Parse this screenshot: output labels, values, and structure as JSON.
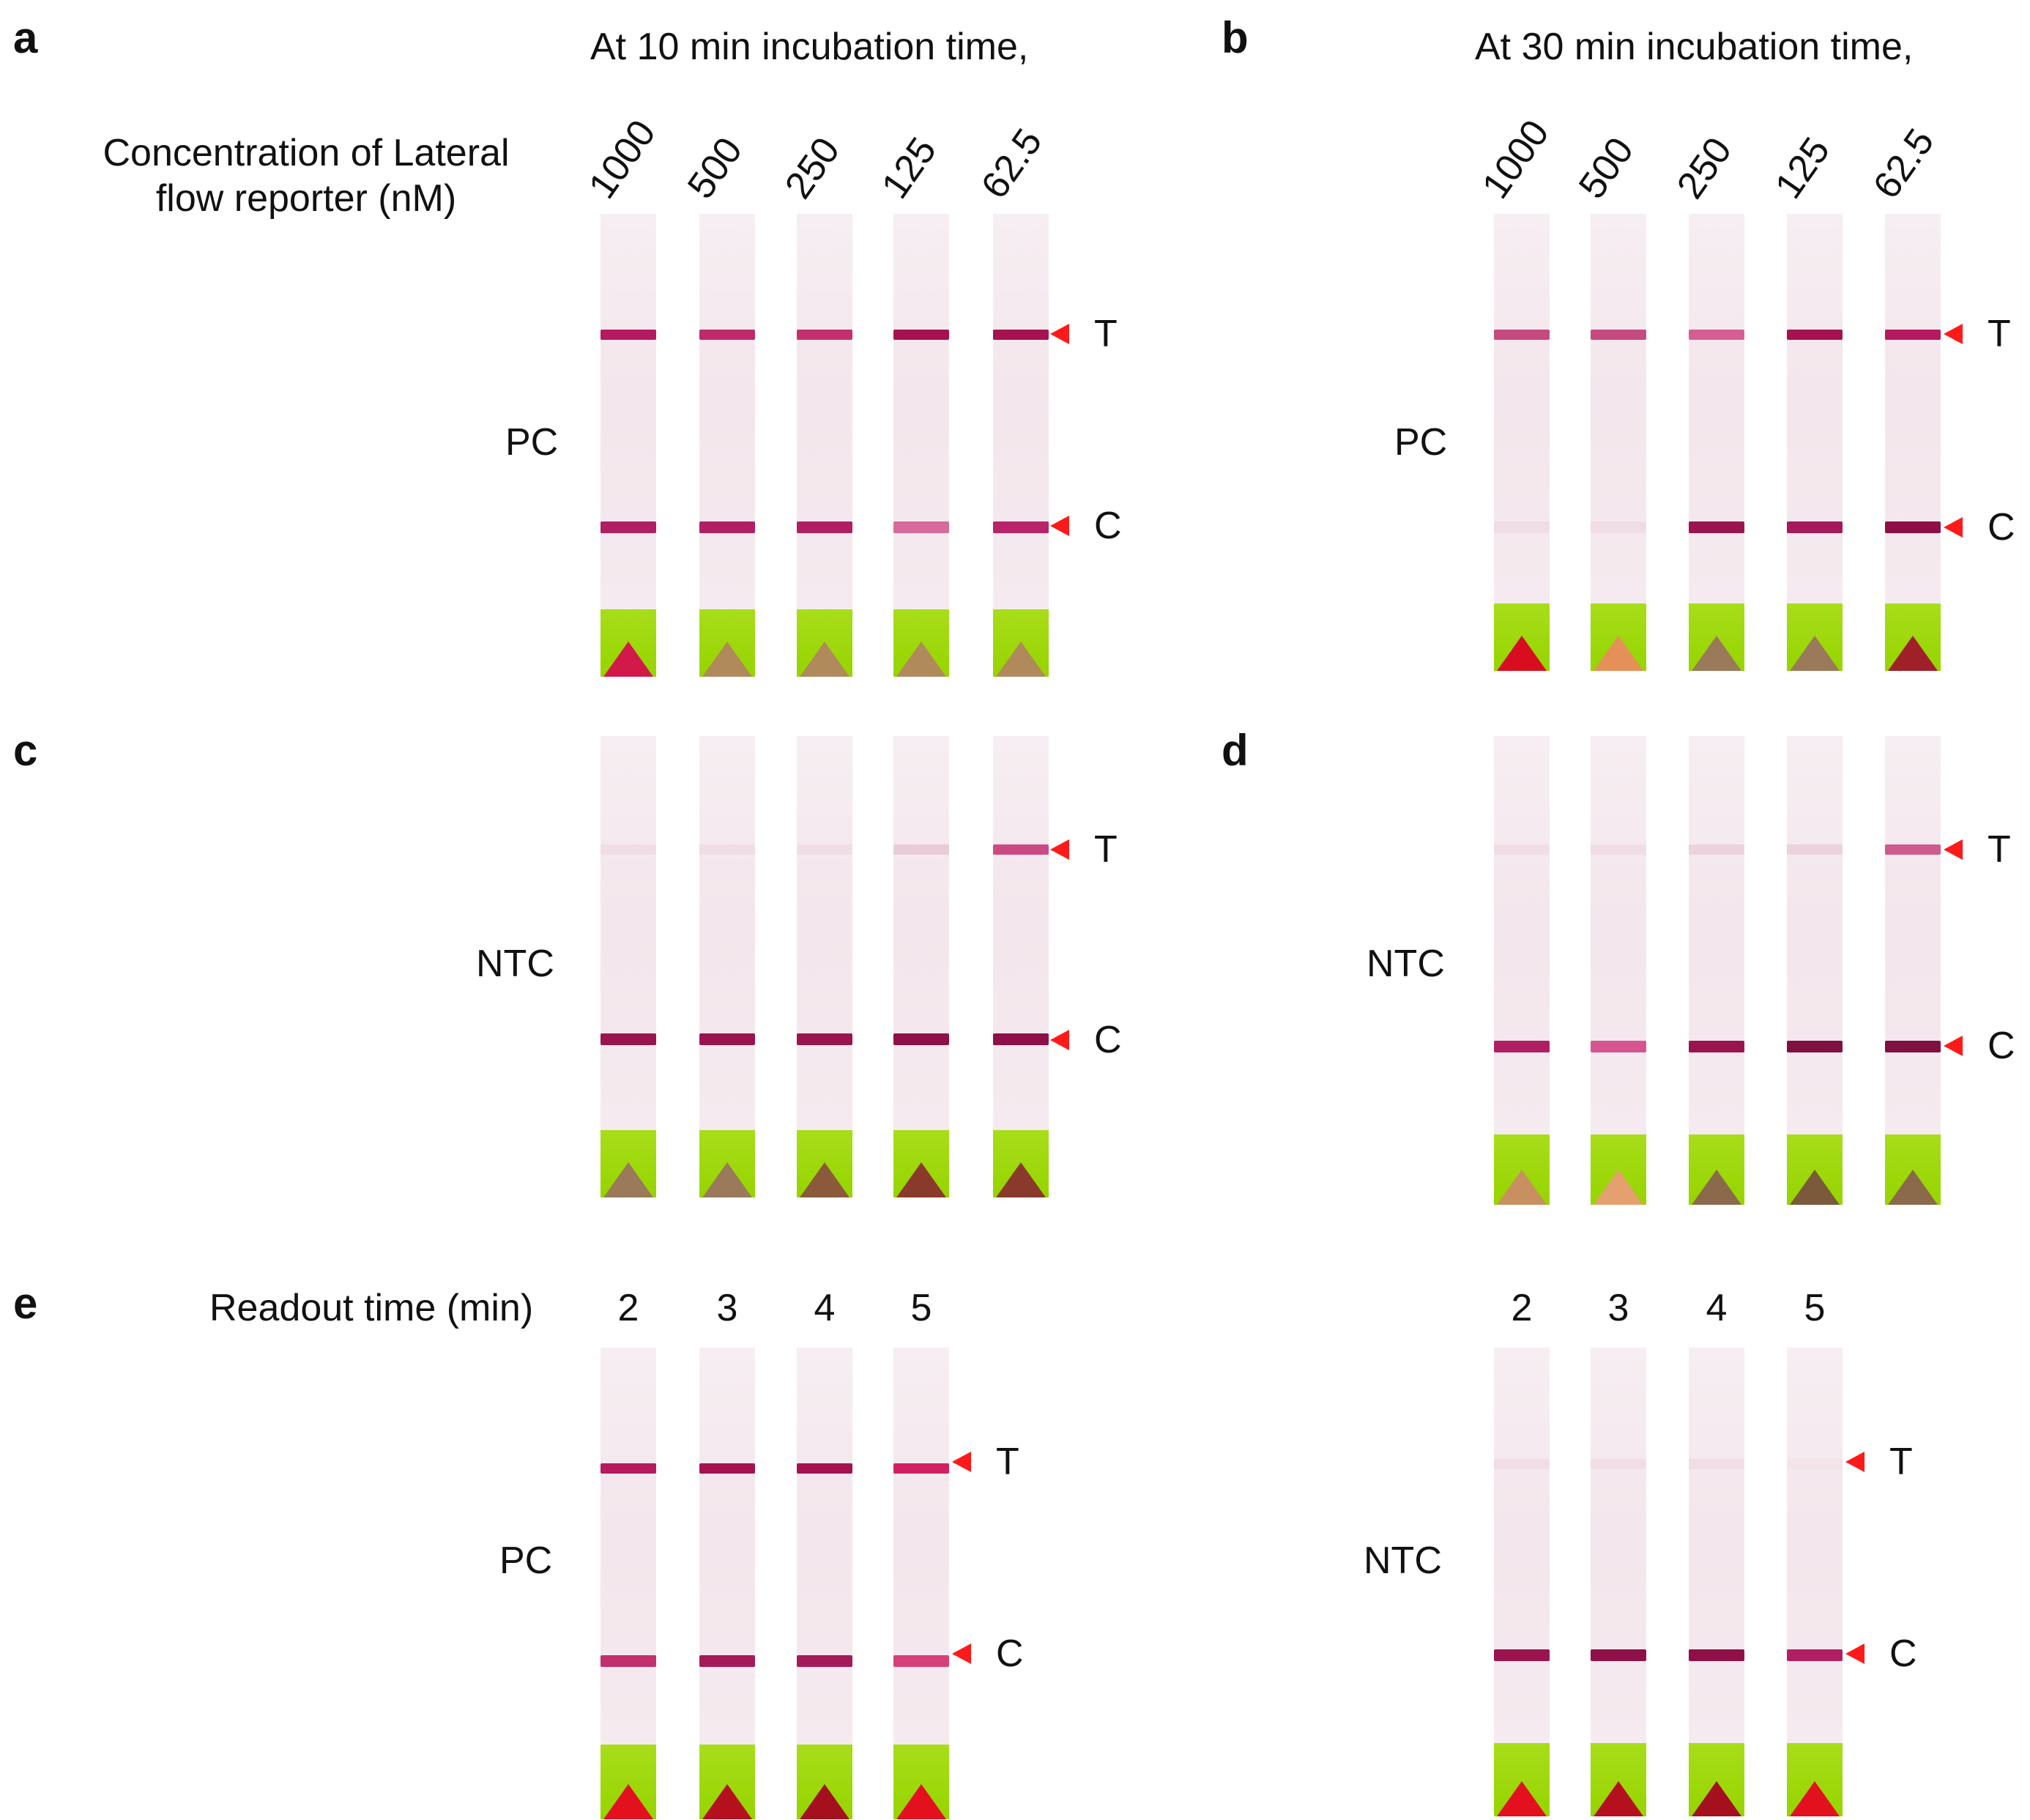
{
  "panels": {
    "a": {
      "letter": "a",
      "caption": "At 10 min incubation time,"
    },
    "b": {
      "letter": "b",
      "caption": "At 30 min incubation time,"
    },
    "c": {
      "letter": "c"
    },
    "d": {
      "letter": "d"
    },
    "e": {
      "letter": "e"
    }
  },
  "concentration_label": "Concentration of Lateral\nflow reporter (nM)",
  "concentrations": [
    "1000",
    "500",
    "250",
    "125",
    "62.5"
  ],
  "readout_label": "Readout time (min)",
  "readout_times": [
    "2",
    "3",
    "4",
    "5"
  ],
  "row_labels": {
    "pc": "PC",
    "ntc": "NTC"
  },
  "markers": {
    "test": "T",
    "control": "C"
  },
  "colors": {
    "arrow": "#ff1a1a",
    "band_strong": "#9a1550",
    "band_medium": "#c2306e",
    "band_faint": "#e7b9cc",
    "pad_green": "#9ed60e",
    "triangle_brown": "#b08a5a",
    "triangle_red": "#d80d20"
  },
  "strips": {
    "a": [
      {
        "t": "#b5195e",
        "c": "#b01f62",
        "tri": "#d11a4a"
      },
      {
        "t": "#bf2a6a",
        "c": "#b01f62",
        "tri": "#b08a5a"
      },
      {
        "t": "#c2306e",
        "c": "#b01f62",
        "tri": "#b08a5a"
      },
      {
        "t": "#a5124f",
        "c": "#d66a9a",
        "tri": "#b08a5a"
      },
      {
        "t": "#a5124f",
        "c": "#b8246a",
        "tri": "#b08a5a"
      }
    ],
    "b": [
      {
        "t": "#c64a80",
        "c": "#f0dce5",
        "tri": "#d80d20"
      },
      {
        "t": "#c64a80",
        "c": "#f0dce5",
        "tri": "#e59058"
      },
      {
        "t": "#d55f92",
        "c": "#9a1550",
        "tri": "#9a7a5a"
      },
      {
        "t": "#a5124f",
        "c": "#a51a58",
        "tri": "#9a7a5a"
      },
      {
        "t": "#b5195e",
        "c": "#8f1048",
        "tri": "#a0202a"
      }
    ],
    "c": [
      {
        "t": "#f0dde6",
        "c": "#9a1550",
        "tri": "#9a7a5a"
      },
      {
        "t": "#f0dde6",
        "c": "#9a1550",
        "tri": "#9a7a5a"
      },
      {
        "t": "#f0dde6",
        "c": "#9a1550",
        "tri": "#8a5a3a"
      },
      {
        "t": "#e9ccd8",
        "c": "#8f1048",
        "tri": "#8a3a2a"
      },
      {
        "t": "#cc4a84",
        "c": "#8f1048",
        "tri": "#8a3a2a"
      }
    ],
    "d": [
      {
        "t": "#f0dde6",
        "c": "#b01f62",
        "tri": "#c89060"
      },
      {
        "t": "#f0dde6",
        "c": "#d65590",
        "tri": "#e5a070"
      },
      {
        "t": "#ecd2dc",
        "c": "#9a1550",
        "tri": "#8a6a4a"
      },
      {
        "t": "#ecd2dc",
        "c": "#80103f",
        "tri": "#7a5a3a"
      },
      {
        "t": "#cf5a8e",
        "c": "#80103f",
        "tri": "#8a6a4a"
      }
    ],
    "e_pc": [
      {
        "t": "#b5195e",
        "c": "#c2306e",
        "tri": "#e3101e"
      },
      {
        "t": "#a5124f",
        "c": "#a51a58",
        "tri": "#b5101e"
      },
      {
        "t": "#a5124f",
        "c": "#a51a58",
        "tri": "#a5101e"
      },
      {
        "t": "#d01f62",
        "c": "#d6407a",
        "tri": "#e3101e"
      }
    ],
    "e_ntc": [
      {
        "t": "#f0dde6",
        "c": "#9a1550",
        "tri": "#e3101e"
      },
      {
        "t": "#f0dde6",
        "c": "#8f1048",
        "tri": "#b5101e"
      },
      {
        "t": "#f0dde6",
        "c": "#8f1048",
        "tri": "#a5101e"
      },
      {
        "t": "#f3e4ea",
        "c": "#b01f62",
        "tri": "#e3101e"
      }
    ]
  }
}
